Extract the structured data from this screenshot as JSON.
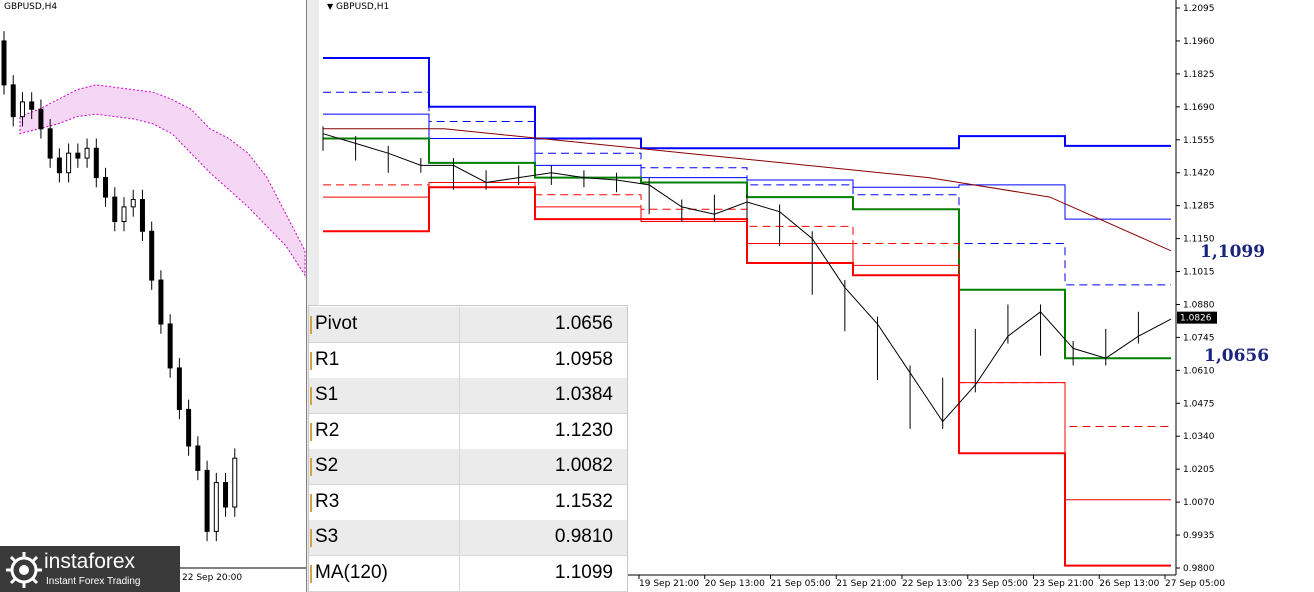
{
  "h4_panel": {
    "title": "GBPUSD,H4",
    "time_labels": [
      "22 Sep 20:00"
    ]
  },
  "h1_panel": {
    "title": "GBPUSD,H1",
    "current_price": "1.0826",
    "annotations": {
      "ma": "1,1099",
      "pivot": "1,0656"
    }
  },
  "pivot_table": {
    "rows": [
      {
        "label": "Pivot",
        "value": "1.0656"
      },
      {
        "label": "R1",
        "value": "1.0958"
      },
      {
        "label": "S1",
        "value": "1.0384"
      },
      {
        "label": "R2",
        "value": "1.1230"
      },
      {
        "label": "S2",
        "value": "1.0082"
      },
      {
        "label": "R3",
        "value": "1.1532"
      },
      {
        "label": "S3",
        "value": "0.9810"
      },
      {
        "label": "MA(120)",
        "value": "1.1099"
      }
    ]
  },
  "logo": {
    "brand": "instaforex",
    "tagline": "Instant Forex Trading"
  },
  "colors": {
    "pivot": "#008000",
    "resistance": "#0000ff",
    "support": "#ff0000",
    "ma": "#8b0000",
    "cloud": "#cc00cc",
    "label": "#1a237e"
  },
  "chart_data": [
    {
      "type": "candlestick",
      "symbol": "GBPUSD",
      "timeframe": "H4",
      "x_tick_labels": [
        "22 Sep 20:00"
      ],
      "close_path": [
        1.196,
        1.178,
        1.165,
        1.171,
        1.168,
        1.16,
        1.148,
        1.142,
        1.15,
        1.148,
        1.152,
        1.14,
        1.132,
        1.122,
        1.128,
        1.131,
        1.118,
        1.098,
        1.08,
        1.062,
        1.045,
        1.03,
        1.02,
        0.995,
        1.015,
        1.005,
        1.025
      ]
    },
    {
      "type": "line",
      "symbol": "GBPUSD",
      "timeframe": "H1",
      "y_range": [
        0.98,
        1.2095
      ],
      "y_ticks": [
        1.2095,
        1.196,
        1.1825,
        1.169,
        1.1555,
        1.142,
        1.1285,
        1.115,
        1.1015,
        1.088,
        1.0745,
        1.061,
        1.0475,
        1.034,
        1.0205,
        1.007,
        0.9935,
        0.98
      ],
      "x_tick_labels": [
        "19 Sep 21:00",
        "20 Sep 13:00",
        "21 Sep 05:00",
        "21 Sep 21:00",
        "22 Sep 13:00",
        "23 Sep 05:00",
        "23 Sep 21:00",
        "26 Sep 13:00",
        "27 Sep 05:00"
      ],
      "current_price": 1.0826,
      "levels": [
        {
          "name": "R3",
          "value": 1.1532
        },
        {
          "name": "R2",
          "value": 1.123
        },
        {
          "name": "R1",
          "value": 1.0958
        },
        {
          "name": "Pivot",
          "value": 1.0656
        },
        {
          "name": "S1",
          "value": 1.0384
        },
        {
          "name": "S2",
          "value": 1.0082
        },
        {
          "name": "S3",
          "value": 0.981
        },
        {
          "name": "MA(120)",
          "value": 1.1099
        }
      ],
      "series": [
        {
          "key": "R3",
          "color": "#0000ff",
          "width": 2,
          "values": [
            1.189,
            1.169,
            1.156,
            1.152,
            1.152,
            1.152,
            1.157,
            1.153
          ]
        },
        {
          "key": "R2",
          "color": "#0000ff",
          "width": 1,
          "values": [
            1.166,
            1.156,
            1.145,
            1.14,
            1.139,
            1.136,
            1.137,
            1.123
          ]
        },
        {
          "key": "R1",
          "color": "#0000ff",
          "width": 1,
          "dash": true,
          "values": [
            1.175,
            1.163,
            1.15,
            1.144,
            1.137,
            1.133,
            1.113,
            1.096
          ]
        },
        {
          "key": "Pivot",
          "color": "#008000",
          "width": 2,
          "values": [
            1.156,
            1.146,
            1.14,
            1.138,
            1.132,
            1.127,
            1.094,
            1.066
          ]
        },
        {
          "key": "S1",
          "color": "#ff0000",
          "width": 1,
          "dash": true,
          "values": [
            1.137,
            1.136,
            1.133,
            1.127,
            1.12,
            1.113,
            1.056,
            1.038
          ]
        },
        {
          "key": "S2",
          "color": "#ff0000",
          "width": 1,
          "values": [
            1.132,
            1.138,
            1.128,
            1.122,
            1.113,
            1.104,
            1.056,
            1.008
          ]
        },
        {
          "key": "S3",
          "color": "#ff0000",
          "width": 2,
          "values": [
            1.118,
            1.136,
            1.123,
            1.123,
            1.105,
            1.1,
            1.027,
            0.981
          ]
        },
        {
          "key": "MA(120)",
          "color": "#8b0000",
          "width": 1,
          "values": [
            1.16,
            1.16,
            1.155,
            1.15,
            1.145,
            1.14,
            1.132,
            1.11
          ]
        },
        {
          "key": "Price",
          "color": "#000000",
          "width": 1,
          "values": [
            1.158,
            1.154,
            1.15,
            1.145,
            1.145,
            1.138,
            1.14,
            1.142,
            1.14,
            1.139,
            1.137,
            1.128,
            1.125,
            1.13,
            1.126,
            1.115,
            1.095,
            1.08,
            1.06,
            1.04,
            1.055,
            1.075,
            1.085,
            1.07,
            1.066,
            1.075,
            1.082
          ]
        }
      ]
    }
  ]
}
